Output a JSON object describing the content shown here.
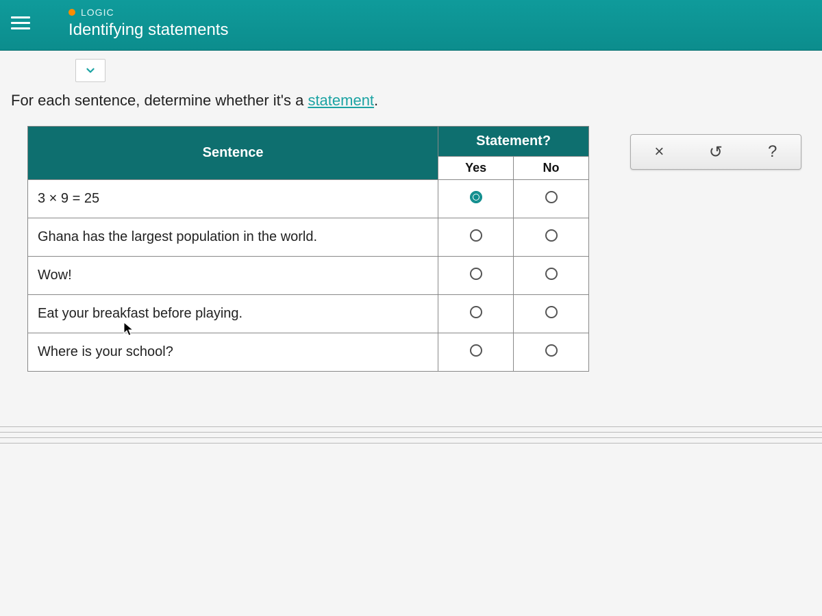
{
  "header": {
    "category": "LOGIC",
    "title": "Identifying statements"
  },
  "instruction": {
    "prefix": "For each sentence, determine whether it's a ",
    "link_text": "statement",
    "suffix": "."
  },
  "table": {
    "col_sentence": "Sentence",
    "col_statement": "Statement?",
    "col_yes": "Yes",
    "col_no": "No",
    "rows": [
      {
        "sentence": "3 × 9 = 25",
        "selected": "yes"
      },
      {
        "sentence": "Ghana has the largest population in the world.",
        "selected": null
      },
      {
        "sentence": "Wow!",
        "selected": null
      },
      {
        "sentence": "Eat your breakfast before playing.",
        "selected": null
      },
      {
        "sentence": "Where is your school?",
        "selected": null
      }
    ]
  },
  "tools": {
    "close": "×",
    "reset": "↺",
    "help": "?"
  },
  "colors": {
    "header_bg": "#0f9b9b",
    "table_header_bg": "#0e6f6f",
    "accent": "#1ba3a3",
    "dot": "#ff8c00"
  }
}
